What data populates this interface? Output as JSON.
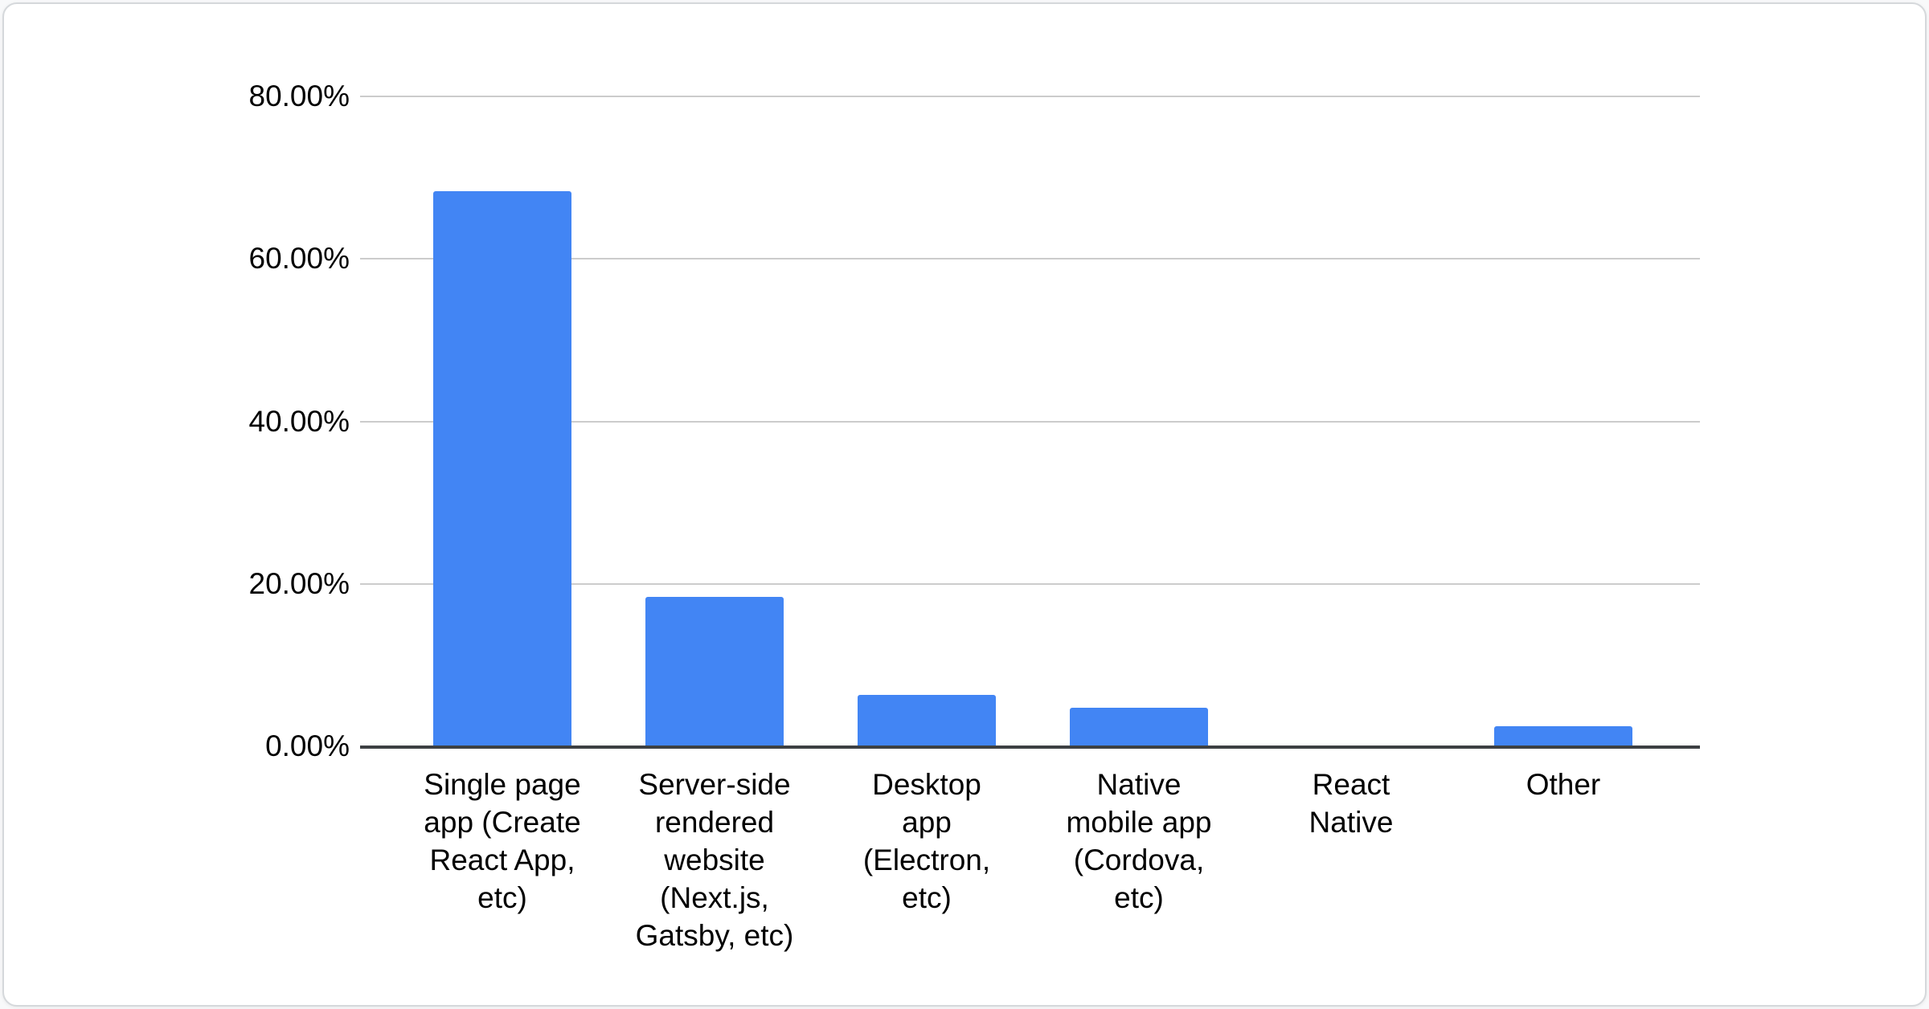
{
  "chart_data": {
    "type": "bar",
    "title": "",
    "xlabel": "",
    "ylabel": "",
    "categories": [
      "Single page app (Create React App, etc)",
      "Server-side rendered website (Next.js, Gatsby, etc)",
      "Desktop app (Electron, etc)",
      "Native mobile app (Cordova, etc)",
      "React Native",
      "Other"
    ],
    "category_label_lines": [
      [
        "Single page",
        "app (Create",
        "React App,",
        "etc)"
      ],
      [
        "Server-side",
        "rendered",
        "website",
        "(Next.js,",
        "Gatsby, etc)"
      ],
      [
        "Desktop",
        "app",
        "(Electron,",
        "etc)"
      ],
      [
        "Native",
        "mobile app",
        "(Cordova,",
        "etc)"
      ],
      [
        "React",
        "Native"
      ],
      [
        "Other"
      ]
    ],
    "values": [
      68.3,
      18.4,
      6.3,
      4.7,
      0,
      2.5
    ],
    "ylim": [
      0,
      80
    ],
    "yticks": {
      "labels": [
        "80.00%",
        "60.00%",
        "40.00%",
        "20.00%",
        "0.00%"
      ],
      "values": [
        80,
        60,
        40,
        20,
        0
      ]
    },
    "grid": true,
    "legend": "none",
    "colors": {
      "bar": "#4285F4",
      "gridline": "#cccccc",
      "axis_line": "#3d4043",
      "text": "#000000",
      "card_background": "#ffffff",
      "card_border": "#d5d8db"
    }
  }
}
